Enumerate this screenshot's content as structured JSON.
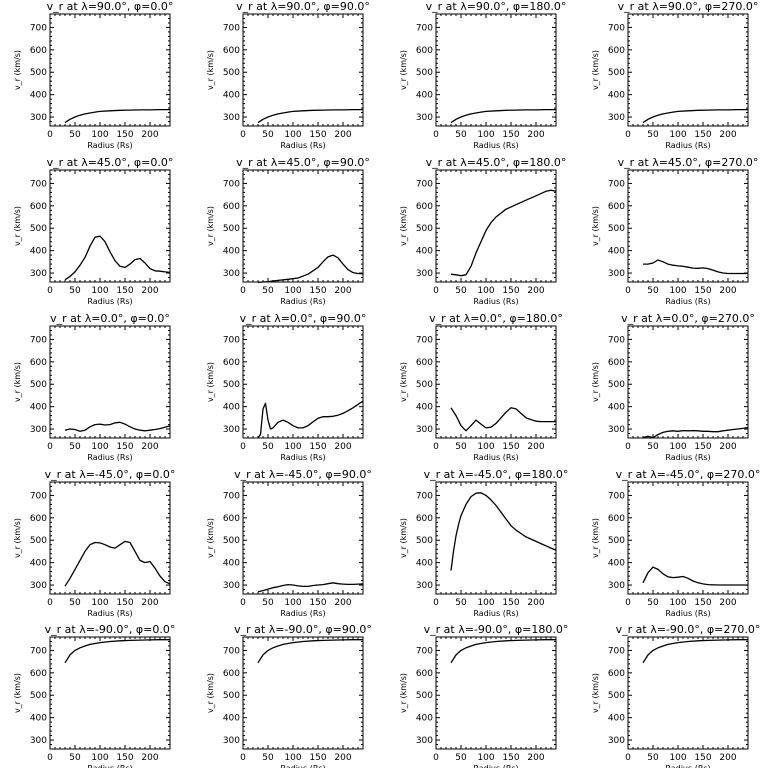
{
  "chart_data": [
    {
      "type": "line",
      "title": "v_r at λ=90.0°, φ=0.0°",
      "xlabel": "Radius (Rs)",
      "ylabel": "v_r (km/s)",
      "xlim": [
        0,
        240
      ],
      "ylim": [
        260,
        760
      ],
      "xticks": [
        0,
        50,
        100,
        150,
        200
      ],
      "yticks": [
        300,
        400,
        500,
        600,
        700
      ],
      "grid": false,
      "x": [
        30,
        40,
        50,
        60,
        70,
        80,
        90,
        100,
        120,
        140,
        160,
        180,
        200,
        220,
        240
      ],
      "y": [
        275,
        290,
        300,
        308,
        314,
        318,
        322,
        325,
        328,
        330,
        331,
        332,
        332,
        333,
        333
      ]
    },
    {
      "type": "line",
      "title": "v_r at λ=90.0°, φ=90.0°",
      "xlabel": "Radius (Rs)",
      "ylabel": "v_r (km/s)",
      "xlim": [
        0,
        240
      ],
      "ylim": [
        260,
        760
      ],
      "xticks": [
        0,
        50,
        100,
        150,
        200
      ],
      "yticks": [
        300,
        400,
        500,
        600,
        700
      ],
      "grid": false,
      "x": [
        30,
        40,
        50,
        60,
        70,
        80,
        90,
        100,
        120,
        140,
        160,
        180,
        200,
        220,
        240
      ],
      "y": [
        275,
        290,
        300,
        308,
        314,
        318,
        322,
        325,
        328,
        330,
        331,
        332,
        332,
        333,
        333
      ]
    },
    {
      "type": "line",
      "title": "v_r at λ=90.0°, φ=180.0°",
      "xlabel": "Radius (Rs)",
      "ylabel": "v_r (km/s)",
      "xlim": [
        0,
        240
      ],
      "ylim": [
        260,
        760
      ],
      "xticks": [
        0,
        50,
        100,
        150,
        200
      ],
      "yticks": [
        300,
        400,
        500,
        600,
        700
      ],
      "grid": false,
      "x": [
        30,
        40,
        50,
        60,
        70,
        80,
        90,
        100,
        120,
        140,
        160,
        180,
        200,
        220,
        240
      ],
      "y": [
        275,
        290,
        300,
        308,
        314,
        318,
        322,
        325,
        328,
        330,
        331,
        332,
        332,
        333,
        333
      ]
    },
    {
      "type": "line",
      "title": "v_r at λ=90.0°, φ=270.0°",
      "xlabel": "Radius (Rs)",
      "ylabel": "v_r (km/s)",
      "xlim": [
        0,
        240
      ],
      "ylim": [
        260,
        760
      ],
      "xticks": [
        0,
        50,
        100,
        150,
        200
      ],
      "yticks": [
        300,
        400,
        500,
        600,
        700
      ],
      "grid": false,
      "x": [
        30,
        40,
        50,
        60,
        70,
        80,
        90,
        100,
        120,
        140,
        160,
        180,
        200,
        220,
        240
      ],
      "y": [
        275,
        290,
        300,
        308,
        314,
        318,
        322,
        325,
        328,
        330,
        331,
        332,
        332,
        333,
        333
      ]
    },
    {
      "type": "line",
      "title": "v_r at λ=45.0°, φ=0.0°",
      "xlabel": "Radius (Rs)",
      "ylabel": "v_r (km/s)",
      "xlim": [
        0,
        240
      ],
      "ylim": [
        260,
        760
      ],
      "xticks": [
        0,
        50,
        100,
        150,
        200
      ],
      "yticks": [
        300,
        400,
        500,
        600,
        700
      ],
      "grid": false,
      "x": [
        30,
        40,
        50,
        60,
        70,
        80,
        90,
        100,
        110,
        120,
        130,
        140,
        150,
        160,
        170,
        180,
        190,
        200,
        210,
        220,
        230,
        240
      ],
      "y": [
        270,
        285,
        305,
        335,
        370,
        420,
        460,
        465,
        440,
        395,
        355,
        330,
        325,
        340,
        360,
        365,
        345,
        320,
        310,
        308,
        305,
        303
      ]
    },
    {
      "type": "line",
      "title": "v_r at λ=45.0°, φ=90.0°",
      "xlabel": "Radius (Rs)",
      "ylabel": "v_r (km/s)",
      "xlim": [
        0,
        240
      ],
      "ylim": [
        260,
        760
      ],
      "xticks": [
        0,
        50,
        100,
        150,
        200
      ],
      "yticks": [
        300,
        400,
        500,
        600,
        700
      ],
      "grid": false,
      "x": [
        30,
        50,
        70,
        90,
        110,
        130,
        150,
        160,
        170,
        180,
        190,
        200,
        210,
        220,
        230,
        240
      ],
      "y": [
        258,
        262,
        267,
        272,
        278,
        295,
        325,
        350,
        372,
        380,
        368,
        340,
        315,
        302,
        298,
        296
      ]
    },
    {
      "type": "line",
      "title": "v_r at λ=45.0°, φ=180.0°",
      "xlabel": "Radius (Rs)",
      "ylabel": "v_r (km/s)",
      "xlim": [
        0,
        240
      ],
      "ylim": [
        260,
        760
      ],
      "xticks": [
        0,
        50,
        100,
        150,
        200
      ],
      "yticks": [
        300,
        400,
        500,
        600,
        700
      ],
      "grid": false,
      "x": [
        30,
        40,
        50,
        60,
        70,
        80,
        90,
        100,
        110,
        120,
        140,
        160,
        180,
        200,
        220,
        230,
        240
      ],
      "y": [
        295,
        292,
        288,
        292,
        330,
        390,
        440,
        490,
        525,
        550,
        585,
        605,
        625,
        645,
        665,
        670,
        665
      ]
    },
    {
      "type": "line",
      "title": "v_r at λ=45.0°, φ=270.0°",
      "xlabel": "Radius (Rs)",
      "ylabel": "v_r (km/s)",
      "xlim": [
        0,
        240
      ],
      "ylim": [
        260,
        760
      ],
      "xticks": [
        0,
        50,
        100,
        150,
        200
      ],
      "yticks": [
        300,
        400,
        500,
        600,
        700
      ],
      "grid": false,
      "x": [
        30,
        40,
        50,
        60,
        70,
        80,
        90,
        100,
        110,
        120,
        130,
        140,
        150,
        160,
        170,
        180,
        190,
        200,
        220,
        240
      ],
      "y": [
        340,
        340,
        345,
        358,
        350,
        340,
        335,
        332,
        330,
        326,
        322,
        321,
        323,
        320,
        313,
        305,
        300,
        298,
        298,
        298
      ]
    },
    {
      "type": "line",
      "title": "v_r at λ=0.0°, φ=0.0°",
      "xlabel": "Radius (Rs)",
      "ylabel": "v_r (km/s)",
      "xlim": [
        0,
        240
      ],
      "ylim": [
        260,
        760
      ],
      "xticks": [
        0,
        50,
        100,
        150,
        200
      ],
      "yticks": [
        300,
        400,
        500,
        600,
        700
      ],
      "grid": false,
      "x": [
        30,
        40,
        50,
        60,
        70,
        80,
        90,
        100,
        110,
        120,
        130,
        140,
        150,
        160,
        170,
        180,
        190,
        200,
        210,
        220,
        230,
        240
      ],
      "y": [
        295,
        300,
        298,
        290,
        295,
        310,
        320,
        322,
        318,
        320,
        328,
        330,
        322,
        310,
        300,
        295,
        292,
        295,
        298,
        302,
        308,
        315
      ]
    },
    {
      "type": "line",
      "title": "v_r at λ=0.0°, φ=90.0°",
      "xlabel": "Radius (Rs)",
      "ylabel": "v_r (km/s)",
      "xlim": [
        0,
        240
      ],
      "ylim": [
        260,
        760
      ],
      "xticks": [
        0,
        50,
        100,
        150,
        200
      ],
      "yticks": [
        300,
        400,
        500,
        600,
        700
      ],
      "grid": false,
      "x": [
        30,
        35,
        40,
        45,
        50,
        55,
        60,
        70,
        80,
        90,
        100,
        110,
        120,
        130,
        140,
        150,
        160,
        170,
        180,
        190,
        200,
        210,
        220,
        230,
        240
      ],
      "y": [
        262,
        275,
        390,
        415,
        340,
        300,
        305,
        330,
        340,
        330,
        315,
        305,
        305,
        315,
        332,
        348,
        355,
        355,
        357,
        362,
        370,
        382,
        395,
        410,
        425
      ]
    },
    {
      "type": "line",
      "title": "v_r at λ=0.0°, φ=180.0°",
      "xlabel": "Radius (Rs)",
      "ylabel": "v_r (km/s)",
      "xlim": [
        0,
        240
      ],
      "ylim": [
        260,
        760
      ],
      "xticks": [
        0,
        50,
        100,
        150,
        200
      ],
      "yticks": [
        300,
        400,
        500,
        600,
        700
      ],
      "grid": false,
      "x": [
        30,
        40,
        50,
        60,
        70,
        80,
        90,
        100,
        110,
        120,
        130,
        140,
        150,
        160,
        170,
        180,
        190,
        200,
        210,
        220,
        230,
        240
      ],
      "y": [
        395,
        360,
        315,
        292,
        315,
        340,
        322,
        305,
        308,
        325,
        350,
        375,
        395,
        390,
        370,
        350,
        342,
        335,
        333,
        333,
        333,
        333
      ]
    },
    {
      "type": "line",
      "title": "v_r at λ=0.0°, φ=270.0°",
      "xlabel": "Radius (Rs)",
      "ylabel": "v_r (km/s)",
      "xlim": [
        0,
        240
      ],
      "ylim": [
        260,
        760
      ],
      "xticks": [
        0,
        50,
        100,
        150,
        200
      ],
      "yticks": [
        300,
        400,
        500,
        600,
        700
      ],
      "grid": false,
      "x": [
        30,
        40,
        50,
        60,
        70,
        80,
        90,
        100,
        110,
        120,
        130,
        140,
        150,
        160,
        170,
        180,
        190,
        200,
        210,
        220,
        230,
        240
      ],
      "y": [
        262,
        268,
        262,
        275,
        285,
        290,
        292,
        290,
        293,
        292,
        293,
        292,
        290,
        290,
        288,
        288,
        292,
        295,
        298,
        300,
        303,
        307
      ]
    },
    {
      "type": "line",
      "title": "v_r at λ=-45.0°, φ=0.0°",
      "xlabel": "Radius (Rs)",
      "ylabel": "v_r (km/s)",
      "xlim": [
        0,
        240
      ],
      "ylim": [
        260,
        760
      ],
      "xticks": [
        0,
        50,
        100,
        150,
        200
      ],
      "yticks": [
        300,
        400,
        500,
        600,
        700
      ],
      "grid": false,
      "x": [
        30,
        40,
        50,
        60,
        70,
        80,
        90,
        100,
        110,
        120,
        130,
        140,
        150,
        160,
        170,
        180,
        190,
        200,
        210,
        220,
        230,
        240
      ],
      "y": [
        295,
        330,
        370,
        410,
        450,
        480,
        490,
        488,
        480,
        470,
        465,
        480,
        495,
        490,
        450,
        410,
        400,
        405,
        375,
        340,
        315,
        305
      ]
    },
    {
      "type": "line",
      "title": "v_r at λ=-45.0°, φ=90.0°",
      "xlabel": "Radius (Rs)",
      "ylabel": "v_r (km/s)",
      "xlim": [
        0,
        240
      ],
      "ylim": [
        260,
        760
      ],
      "xticks": [
        0,
        50,
        100,
        150,
        200
      ],
      "yticks": [
        300,
        400,
        500,
        600,
        700
      ],
      "grid": false,
      "x": [
        30,
        40,
        50,
        60,
        70,
        80,
        90,
        100,
        110,
        120,
        130,
        140,
        150,
        160,
        170,
        180,
        190,
        200,
        210,
        220,
        230,
        240
      ],
      "y": [
        270,
        275,
        282,
        288,
        292,
        298,
        302,
        300,
        296,
        294,
        294,
        298,
        300,
        302,
        306,
        310,
        306,
        304,
        303,
        303,
        304,
        305
      ]
    },
    {
      "type": "line",
      "title": "v_r at λ=-45.0°, φ=180.0°",
      "xlabel": "Radius (Rs)",
      "ylabel": "v_r (km/s)",
      "xlim": [
        0,
        240
      ],
      "ylim": [
        260,
        760
      ],
      "xticks": [
        0,
        50,
        100,
        150,
        200
      ],
      "yticks": [
        300,
        400,
        500,
        600,
        700
      ],
      "grid": false,
      "x": [
        30,
        35,
        40,
        45,
        50,
        60,
        70,
        80,
        90,
        100,
        110,
        120,
        130,
        140,
        150,
        160,
        170,
        180,
        190,
        200,
        210,
        220,
        230,
        240
      ],
      "y": [
        365,
        450,
        520,
        570,
        610,
        660,
        695,
        710,
        712,
        700,
        680,
        655,
        625,
        595,
        565,
        545,
        530,
        515,
        505,
        495,
        485,
        475,
        465,
        455
      ]
    },
    {
      "type": "line",
      "title": "v_r at λ=-45.0°, φ=270.0°",
      "xlabel": "Radius (Rs)",
      "ylabel": "v_r (km/s)",
      "xlim": [
        0,
        240
      ],
      "ylim": [
        260,
        760
      ],
      "xticks": [
        0,
        50,
        100,
        150,
        200
      ],
      "yticks": [
        300,
        400,
        500,
        600,
        700
      ],
      "grid": false,
      "x": [
        30,
        40,
        50,
        60,
        70,
        80,
        90,
        100,
        110,
        120,
        130,
        140,
        150,
        160,
        180,
        200,
        220,
        240
      ],
      "y": [
        310,
        355,
        380,
        370,
        350,
        337,
        333,
        335,
        338,
        330,
        318,
        310,
        305,
        302,
        300,
        300,
        300,
        300
      ]
    },
    {
      "type": "line",
      "title": "v_r at λ=-90.0°, φ=0.0°",
      "xlabel": "Radius (Rs)",
      "ylabel": "v_r (km/s)",
      "xlim": [
        0,
        240
      ],
      "ylim": [
        260,
        760
      ],
      "xticks": [
        0,
        50,
        100,
        150,
        200
      ],
      "yticks": [
        300,
        400,
        500,
        600,
        700
      ],
      "grid": false,
      "x": [
        30,
        40,
        50,
        60,
        70,
        80,
        90,
        100,
        120,
        140,
        160,
        180,
        200,
        220,
        240
      ],
      "y": [
        645,
        680,
        700,
        712,
        720,
        727,
        731,
        735,
        740,
        743,
        745,
        746,
        747,
        748,
        748
      ]
    },
    {
      "type": "line",
      "title": "v_r at λ=-90.0°, φ=90.0°",
      "xlabel": "Radius (Rs)",
      "ylabel": "v_r (km/s)",
      "xlim": [
        0,
        240
      ],
      "ylim": [
        260,
        760
      ],
      "xticks": [
        0,
        50,
        100,
        150,
        200
      ],
      "yticks": [
        300,
        400,
        500,
        600,
        700
      ],
      "grid": false,
      "x": [
        30,
        40,
        50,
        60,
        70,
        80,
        90,
        100,
        120,
        140,
        160,
        180,
        200,
        220,
        240
      ],
      "y": [
        645,
        680,
        700,
        712,
        720,
        727,
        731,
        735,
        740,
        743,
        745,
        746,
        747,
        748,
        748
      ]
    },
    {
      "type": "line",
      "title": "v_r at λ=-90.0°, φ=180.0°",
      "xlabel": "Radius (Rs)",
      "ylabel": "v_r (km/s)",
      "xlim": [
        0,
        240
      ],
      "ylim": [
        260,
        760
      ],
      "xticks": [
        0,
        50,
        100,
        150,
        200
      ],
      "yticks": [
        300,
        400,
        500,
        600,
        700
      ],
      "grid": false,
      "x": [
        30,
        40,
        50,
        60,
        70,
        80,
        90,
        100,
        120,
        140,
        160,
        180,
        200,
        220,
        240
      ],
      "y": [
        645,
        680,
        700,
        712,
        720,
        727,
        731,
        735,
        740,
        743,
        745,
        746,
        747,
        748,
        748
      ]
    },
    {
      "type": "line",
      "title": "v_r at λ=-90.0°, φ=270.0°",
      "xlabel": "Radius (Rs)",
      "ylabel": "v_r (km/s)",
      "xlim": [
        0,
        240
      ],
      "ylim": [
        260,
        760
      ],
      "xticks": [
        0,
        50,
        100,
        150,
        200
      ],
      "yticks": [
        300,
        400,
        500,
        600,
        700
      ],
      "grid": false,
      "x": [
        30,
        40,
        50,
        60,
        70,
        80,
        90,
        100,
        120,
        140,
        160,
        180,
        200,
        220,
        240
      ],
      "y": [
        645,
        680,
        700,
        712,
        720,
        727,
        731,
        735,
        740,
        743,
        745,
        746,
        747,
        748,
        748
      ]
    }
  ]
}
